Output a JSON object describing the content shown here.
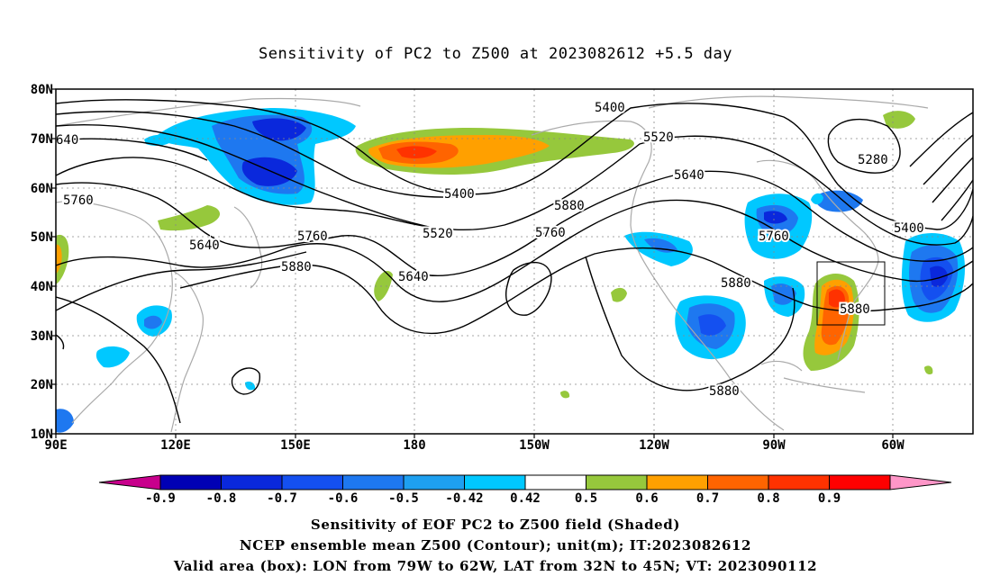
{
  "title": "Sensitivity of PC2 to Z500 at 2023082612 +5.5 day",
  "map": {
    "lat_labels": [
      "80N",
      "70N",
      "60N",
      "50N",
      "40N",
      "30N",
      "20N",
      "10N"
    ],
    "lon_labels": [
      "90E",
      "120E",
      "150E",
      "180",
      "150W",
      "120W",
      "90W",
      "60W"
    ],
    "contour_labels": [
      "5400",
      "5520",
      "5640",
      "5760",
      "5880",
      "5280",
      "5400",
      "5520",
      "5640",
      "5760",
      "5880",
      "5400",
      "5520",
      "5640",
      "5760",
      "5880",
      "5760",
      "5640",
      "5880",
      "640"
    ],
    "valid_box": {
      "lon_from": "79W",
      "lon_to": "62W",
      "lat_from": "32N",
      "lat_to": "45N"
    }
  },
  "colorbar": {
    "labels": [
      "-0.9",
      "-0.8",
      "-0.7",
      "-0.6",
      "-0.5",
      "-0.42",
      "0.42",
      "0.5",
      "0.6",
      "0.7",
      "0.8",
      "0.9"
    ],
    "colors": [
      "#c8008c",
      "#0000b4",
      "#0a28dc",
      "#1450f0",
      "#1e78f0",
      "#1ea0f0",
      "#00c8ff",
      "#ffffff",
      "#96c83c",
      "#ffa000",
      "#ff6400",
      "#ff3200",
      "#ff0000",
      "#ff96c8"
    ]
  },
  "captions": {
    "line1": "Sensitivity of EOF PC2 to Z500 field (Shaded)",
    "line2": "NCEP ensemble mean Z500 (Contour); unit(m); IT:2023082612",
    "line3": "Valid area (box): LON from 79W to 62W, LAT from 32N to 45N; VT: 2023090112"
  },
  "colors": {
    "contour": "#000000",
    "coast": "#aaaaaa",
    "grid": "#888888",
    "green": "#96c83c",
    "orange": "#ffa000",
    "dark_orange": "#ff6400",
    "red": "#ff3200",
    "sky": "#00c8ff",
    "light_blue": "#1ea0f0",
    "blue": "#1e78f0",
    "mid_blue": "#1450f0",
    "deep_blue": "#0a28dc",
    "navy": "#0000b4"
  }
}
